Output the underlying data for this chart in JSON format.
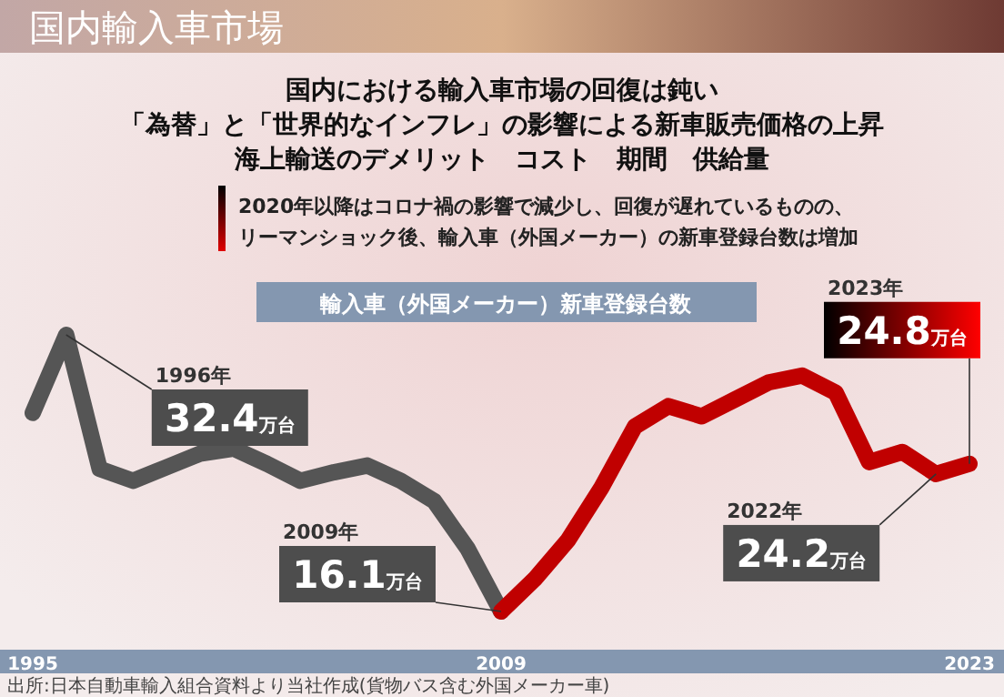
{
  "chart_data": {
    "type": "line",
    "title": "国内輸入車市場",
    "subtitle": "国内における輸入車市場の回復は鈍い",
    "annotations": [
      "「為替」と「世界的なインフレ」の影響による新車販売価格の上昇",
      "海上輸送のデメリット　コスト　期間　供給量",
      "2020年以降はコロナ禍の影響で減少し、回復が遅れているものの、リーマンショック後、輸入車（外国メーカー）の新車登録台数は増加",
      "輸入車（外国メーカー）新車登録台数",
      "1996年",
      "2009年",
      "2022年",
      "2023年",
      "出所:日本自動車輸入組合資料より当社作成(貨物バス含む外国メーカー車)"
    ],
    "series": [
      {
        "color": "#555555",
        "x": [
          1995,
          1996,
          1997,
          1998,
          1999,
          2000,
          2001,
          2002,
          2003,
          2004,
          2005,
          2006,
          2007,
          2008,
          2009
        ],
        "values": [
          27.8,
          32.4,
          24.5,
          23.8,
          24.6,
          25.4,
          25.7,
          24.8,
          23.8,
          24.3,
          24.7,
          23.8,
          22.6,
          19.8,
          16.1
        ],
        "value_labels": [
          null,
          "32.4万台",
          null,
          null,
          null,
          null,
          null,
          null,
          null,
          null,
          null,
          null,
          null,
          null,
          null
        ]
      },
      {
        "color": "#c00000",
        "x": [
          2009,
          2010,
          2011,
          2012,
          2013,
          2014,
          2015,
          2016,
          2017,
          2018,
          2019,
          2020,
          2021,
          2022,
          2023
        ],
        "values": [
          16.1,
          18.0,
          20.3,
          23.4,
          27.0,
          28.2,
          27.6,
          28.6,
          29.6,
          30.0,
          29.0,
          24.9,
          25.5,
          24.2,
          24.8
        ],
        "value_labels": [
          "16.1万台",
          null,
          null,
          null,
          null,
          null,
          null,
          null,
          null,
          null,
          null,
          null,
          null,
          "24.2万台",
          "24.8万台"
        ]
      }
    ],
    "xlim": [
      1995,
      2023
    ],
    "xticks": [
      1995,
      2009,
      2023
    ],
    "tick_labels": "x",
    "grid": false
  }
}
